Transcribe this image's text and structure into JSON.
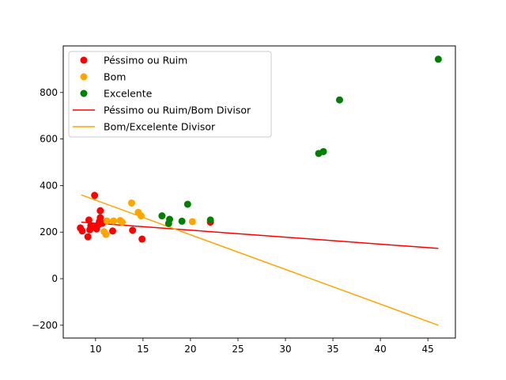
{
  "chart_data": {
    "type": "scatter",
    "title": "",
    "xlabel": "",
    "ylabel": "",
    "xlim": [
      6.6,
      47.9
    ],
    "ylim": [
      -255,
      1000
    ],
    "x_ticks": [
      10,
      15,
      20,
      25,
      30,
      35,
      40,
      45
    ],
    "y_ticks": [
      -200,
      0,
      200,
      400,
      600,
      800
    ],
    "x_tick_labels": [
      "10",
      "15",
      "20",
      "25",
      "30",
      "35",
      "40",
      "45"
    ],
    "y_tick_labels": [
      "−200",
      "0",
      "200",
      "400",
      "600",
      "800"
    ],
    "grid": false,
    "legend_position": "upper-left",
    "series": [
      {
        "name": "Péssimo ou Ruim",
        "kind": "scatter",
        "color": "#ff0000",
        "points": [
          [
            8.4,
            218
          ],
          [
            8.6,
            205
          ],
          [
            9.2,
            180
          ],
          [
            9.3,
            252
          ],
          [
            9.5,
            228
          ],
          [
            9.4,
            210
          ],
          [
            9.9,
            358
          ],
          [
            10.0,
            222
          ],
          [
            10.1,
            214
          ],
          [
            10.3,
            232
          ],
          [
            10.5,
            292
          ],
          [
            10.5,
            262
          ],
          [
            10.7,
            238
          ],
          [
            10.4,
            245
          ],
          [
            11.8,
            205
          ],
          [
            13.9,
            208
          ],
          [
            14.9,
            170
          ],
          [
            22.1,
            243
          ]
        ]
      },
      {
        "name": "Bom",
        "kind": "scatter",
        "color": "#ffa500",
        "points": [
          [
            10.9,
            202
          ],
          [
            11.1,
            190
          ],
          [
            11.2,
            248
          ],
          [
            11.9,
            248
          ],
          [
            12.6,
            250
          ],
          [
            12.8,
            243
          ],
          [
            13.8,
            325
          ],
          [
            14.5,
            285
          ],
          [
            14.8,
            270
          ],
          [
            20.2,
            245
          ]
        ]
      },
      {
        "name": "Excelente",
        "kind": "scatter",
        "color": "#008000",
        "points": [
          [
            17.0,
            270
          ],
          [
            17.7,
            237
          ],
          [
            17.8,
            255
          ],
          [
            19.1,
            247
          ],
          [
            19.7,
            320
          ],
          [
            22.1,
            252
          ],
          [
            33.5,
            538
          ],
          [
            34.0,
            546
          ],
          [
            35.7,
            768
          ],
          [
            46.1,
            943
          ]
        ]
      },
      {
        "name": "Péssimo ou Ruim/Bom Divisor",
        "kind": "line",
        "color": "#ff0000",
        "points": [
          [
            8.5,
            243
          ],
          [
            46.1,
            130
          ]
        ]
      },
      {
        "name": "Bom/Excelente Divisor",
        "kind": "line",
        "color": "#ffa500",
        "points": [
          [
            8.5,
            360
          ],
          [
            46.1,
            -200
          ]
        ]
      }
    ]
  }
}
